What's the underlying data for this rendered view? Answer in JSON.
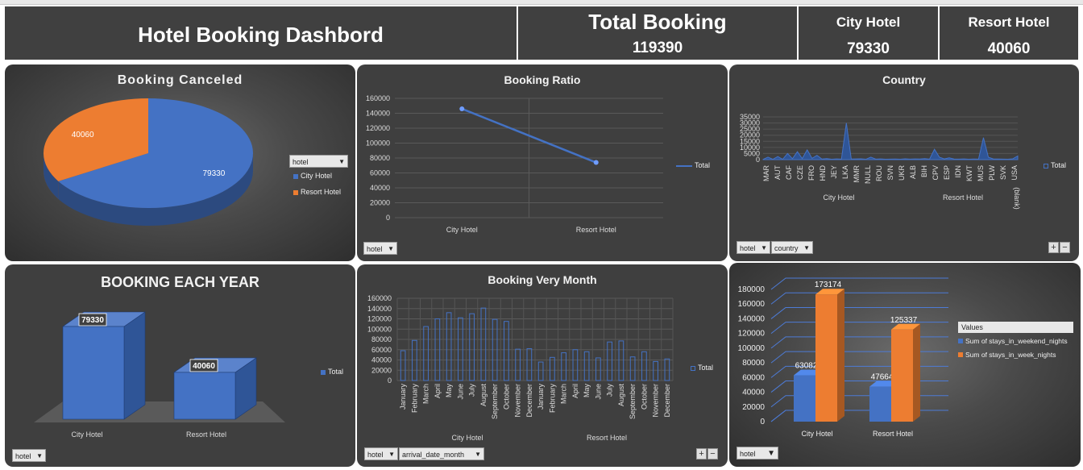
{
  "header": {
    "title": "Hotel Booking Dashbord",
    "total_label": "Total Booking",
    "total_value": "119390",
    "city_label": "City Hotel",
    "city_value": "79330",
    "resort_label": "Resort Hotel",
    "resort_value": "40060"
  },
  "colors": {
    "blue": "#4472c4",
    "orange": "#ed7d31",
    "panel": "#3f3f3f"
  },
  "chart_data": [
    {
      "id": "booking_canceled",
      "type": "pie",
      "title": "Booking Canceled",
      "categories": [
        "City Hotel",
        "Resort Hotel"
      ],
      "values": [
        79330,
        40060
      ],
      "data_labels": [
        "79330",
        "40060"
      ],
      "filter_label": "hotel",
      "legend": [
        "City Hotel",
        "Resort Hotel"
      ],
      "legend_position": "right"
    },
    {
      "id": "booking_ratio",
      "type": "line",
      "title": "Booking Ratio",
      "categories": [
        "City Hotel",
        "Resort Hotel"
      ],
      "series": [
        {
          "name": "Total",
          "values": [
            146000,
            74000
          ]
        }
      ],
      "ylim": [
        0,
        160000
      ],
      "yticks": [
        "0",
        "20000",
        "40000",
        "60000",
        "80000",
        "100000",
        "120000",
        "140000",
        "160000"
      ],
      "filter_label": "hotel",
      "grid": true,
      "legend_position": "right"
    },
    {
      "id": "country",
      "type": "area",
      "title": "Country",
      "ylim": [
        0,
        35000
      ],
      "yticks": [
        "0",
        "5000",
        "10000",
        "15000",
        "20000",
        "25000",
        "30000",
        "35000"
      ],
      "x_tick_labels": [
        "MAR",
        "AUT",
        "CAF",
        "CZE",
        "FRO",
        "HND",
        "JEY",
        "LKA",
        "MMR",
        "NULL",
        "ROU",
        "SVN",
        "UKR",
        "ALB",
        "BIH",
        "CPV",
        "ESP",
        "IDN",
        "KWT",
        "MUS",
        "PLW",
        "SVK",
        "USA"
      ],
      "groups": [
        "City Hotel",
        "Resort Hotel"
      ],
      "blank_label": "(blank)",
      "series": [
        {
          "name": "Total",
          "values": [
            200,
            2000,
            300,
            2500,
            300,
            5000,
            800,
            6500,
            900,
            8000,
            1000,
            3500,
            500,
            800,
            300,
            600,
            400,
            30000,
            500,
            600,
            700,
            300,
            2000,
            400,
            600,
            300,
            400,
            500,
            300,
            700,
            400,
            600,
            500,
            800,
            400,
            8500,
            2000,
            600,
            1500,
            500,
            400,
            600,
            300,
            500,
            400,
            18000,
            2000,
            600,
            500,
            400,
            300,
            700,
            3000
          ]
        }
      ],
      "filter_labels": [
        "hotel",
        "country"
      ],
      "legend_position": "right",
      "grid": true
    },
    {
      "id": "booking_each_year",
      "type": "bar",
      "title": "BOOKING EACH YEAR",
      "categories": [
        "City Hotel",
        "Resort Hotel"
      ],
      "series": [
        {
          "name": "Total",
          "values": [
            79330,
            40060
          ]
        }
      ],
      "data_labels": [
        "79330",
        "40060"
      ],
      "filter_label": "hotel",
      "legend_position": "right"
    },
    {
      "id": "booking_month",
      "type": "bar",
      "title": "Booking Very Month",
      "categories": [
        "January",
        "February",
        "March",
        "April",
        "May",
        "June",
        "July",
        "August",
        "September",
        "October",
        "November",
        "December",
        "January",
        "February",
        "March",
        "April",
        "May",
        "June",
        "July",
        "August",
        "September",
        "October",
        "November",
        "December"
      ],
      "groups": [
        "City Hotel",
        "Resort Hotel"
      ],
      "series": [
        {
          "name": "Total",
          "values": [
            58000,
            78000,
            105000,
            120000,
            132000,
            122000,
            130000,
            141000,
            119000,
            115000,
            61000,
            62000,
            36000,
            45000,
            54000,
            60000,
            56000,
            44000,
            75000,
            77000,
            46000,
            56000,
            37000,
            42000
          ]
        }
      ],
      "ylim": [
        0,
        160000
      ],
      "yticks": [
        "0",
        "20000",
        "40000",
        "60000",
        "80000",
        "100000",
        "120000",
        "140000",
        "160000"
      ],
      "filter_labels": [
        "hotel",
        "arrival_date_month"
      ],
      "grid": true,
      "legend_position": "right"
    },
    {
      "id": "stays",
      "type": "bar",
      "title": "",
      "categories": [
        "City Hotel",
        "Resort Hotel"
      ],
      "series": [
        {
          "name": "Sum of stays_in_weekend_nights",
          "values": [
            63082,
            47664
          ]
        },
        {
          "name": "Sum of stays_in_week_nights",
          "values": [
            173174,
            125337
          ]
        }
      ],
      "data_labels": [
        [
          "63082",
          "47664"
        ],
        [
          "173174",
          "125337"
        ]
      ],
      "ylim": [
        0,
        180000
      ],
      "yticks": [
        "0",
        "20000",
        "40000",
        "60000",
        "80000",
        "100000",
        "120000",
        "140000",
        "160000",
        "180000"
      ],
      "legend_title": "Values",
      "filter_label": "hotel",
      "legend_position": "right",
      "grid": true
    }
  ]
}
